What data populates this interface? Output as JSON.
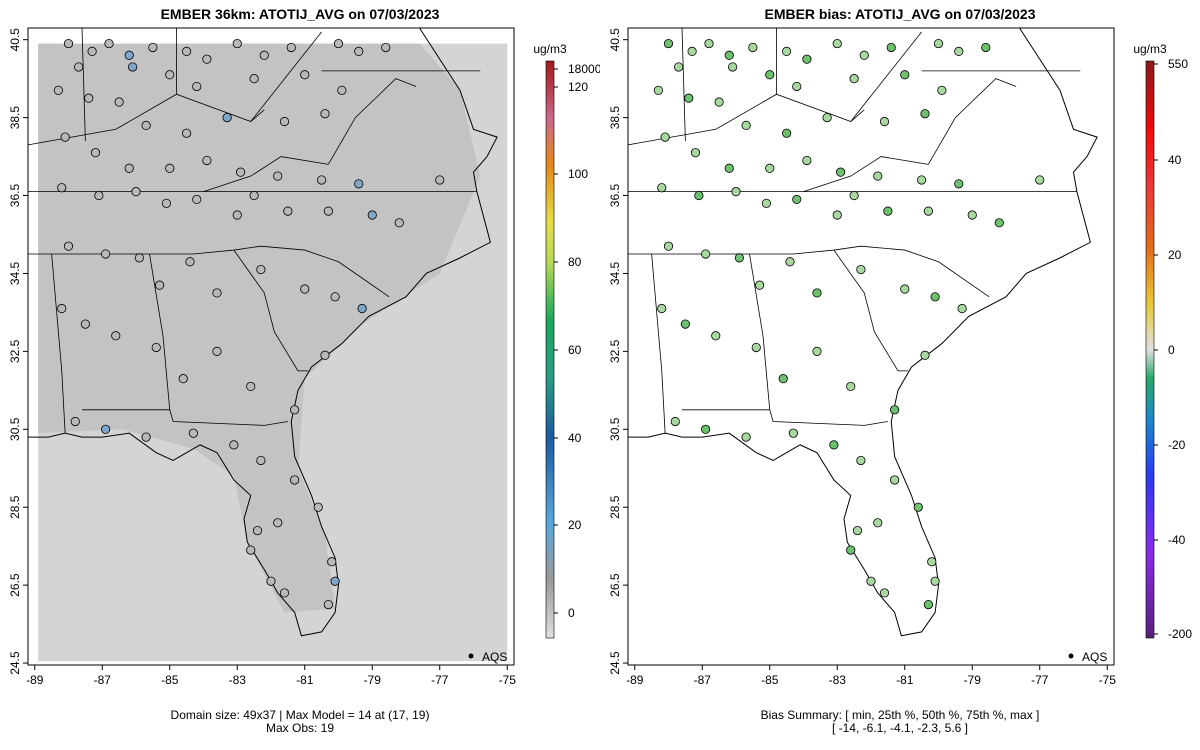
{
  "left_panel": {
    "title": "EMBER 36km: ATOTIJ_AVG on 07/03/2023",
    "footer_line1": "Domain size: 49x37 | Max Model = 14 at (17, 19)",
    "footer_line2": "Max Obs: 19",
    "colorbar_unit": "ug/m3",
    "colorbar_ticks": [
      "18000",
      "120",
      "100",
      "80",
      "60",
      "40",
      "20",
      "0"
    ],
    "legend_text": "AQS"
  },
  "right_panel": {
    "title": "EMBER bias: ATOTIJ_AVG on 07/03/2023",
    "footer_line1": "Bias Summary: [ min, 25th %, 50th %, 75th %, max ]",
    "footer_line2": "[ -14,   -6.1,   -4.1,   -2.3,   5.6 ]",
    "colorbar_unit": "ug/m3",
    "colorbar_ticks": [
      "550",
      "40",
      "20",
      "0",
      "-20",
      "-40",
      "-200"
    ],
    "legend_text": "AQS"
  },
  "axes": {
    "lon_ticks": [
      "-89",
      "-87",
      "-85",
      "-83",
      "-81",
      "-79",
      "-77",
      "-75"
    ],
    "lat_ticks": [
      "40.5",
      "38.5",
      "36.5",
      "34.5",
      "32.5",
      "30.5",
      "28.5",
      "26.5",
      "24.5"
    ],
    "lon_range": [
      -89.2,
      -74.8
    ],
    "lat_range": [
      24.45,
      40.8
    ]
  },
  "stations": [
    [
      -88.0,
      40.4
    ],
    [
      -87.3,
      40.2
    ],
    [
      -86.8,
      40.4
    ],
    [
      -86.2,
      40.1
    ],
    [
      -85.5,
      40.3
    ],
    [
      -84.5,
      40.2
    ],
    [
      -83.9,
      40.0
    ],
    [
      -83.0,
      40.4
    ],
    [
      -82.2,
      40.1
    ],
    [
      -81.4,
      40.3
    ],
    [
      -80.0,
      40.4
    ],
    [
      -79.4,
      40.2
    ],
    [
      -78.6,
      40.3
    ],
    [
      -87.7,
      39.8
    ],
    [
      -86.1,
      39.8
    ],
    [
      -85.0,
      39.6
    ],
    [
      -84.2,
      39.3
    ],
    [
      -82.5,
      39.5
    ],
    [
      -81.0,
      39.6
    ],
    [
      -79.9,
      39.2
    ],
    [
      -88.3,
      39.2
    ],
    [
      -87.4,
      39.0
    ],
    [
      -86.5,
      38.9
    ],
    [
      -85.7,
      38.3
    ],
    [
      -84.5,
      38.1
    ],
    [
      -83.3,
      38.5
    ],
    [
      -81.6,
      38.4
    ],
    [
      -80.4,
      38.6
    ],
    [
      -88.1,
      38.0
    ],
    [
      -87.2,
      37.6
    ],
    [
      -86.2,
      37.2
    ],
    [
      -85.0,
      37.2
    ],
    [
      -83.9,
      37.4
    ],
    [
      -82.9,
      37.1
    ],
    [
      -81.8,
      37.0
    ],
    [
      -80.5,
      36.9
    ],
    [
      -79.4,
      36.8
    ],
    [
      -77.0,
      36.9
    ],
    [
      -88.2,
      36.7
    ],
    [
      -87.1,
      36.5
    ],
    [
      -86.0,
      36.6
    ],
    [
      -85.1,
      36.3
    ],
    [
      -84.2,
      36.4
    ],
    [
      -83.0,
      36.0
    ],
    [
      -82.5,
      36.5
    ],
    [
      -81.5,
      36.1
    ],
    [
      -80.3,
      36.1
    ],
    [
      -79.0,
      36.0
    ],
    [
      -78.2,
      35.8
    ],
    [
      -88.0,
      35.2
    ],
    [
      -86.9,
      35.0
    ],
    [
      -85.9,
      34.9
    ],
    [
      -85.3,
      34.2
    ],
    [
      -84.4,
      34.8
    ],
    [
      -83.6,
      34.0
    ],
    [
      -82.3,
      34.6
    ],
    [
      -81.0,
      34.1
    ],
    [
      -80.1,
      33.9
    ],
    [
      -79.3,
      33.6
    ],
    [
      -88.2,
      33.6
    ],
    [
      -87.5,
      33.2
    ],
    [
      -86.6,
      32.9
    ],
    [
      -85.4,
      32.6
    ],
    [
      -84.6,
      31.8
    ],
    [
      -83.6,
      32.5
    ],
    [
      -82.6,
      31.6
    ],
    [
      -81.3,
      31.0
    ],
    [
      -80.4,
      32.4
    ],
    [
      -87.8,
      30.7
    ],
    [
      -86.9,
      30.5
    ],
    [
      -85.7,
      30.3
    ],
    [
      -84.3,
      30.4
    ],
    [
      -83.1,
      30.1
    ],
    [
      -82.3,
      29.7
    ],
    [
      -81.3,
      29.2
    ],
    [
      -80.6,
      28.5
    ],
    [
      -81.8,
      28.1
    ],
    [
      -82.4,
      27.9
    ],
    [
      -82.6,
      27.4
    ],
    [
      -80.2,
      27.1
    ],
    [
      -80.1,
      26.6
    ],
    [
      -80.3,
      26.0
    ],
    [
      -81.6,
      26.3
    ],
    [
      -82.0,
      26.6
    ]
  ],
  "colors": {
    "bias_green": "#a8d8a0",
    "bias_green_dark": "#6cc06e",
    "obs_gray": "#b8b8b8",
    "obs_blue": "#7fa6c8",
    "background_grid": "#d4d4d4",
    "land_dark": "#b5b5b5"
  }
}
